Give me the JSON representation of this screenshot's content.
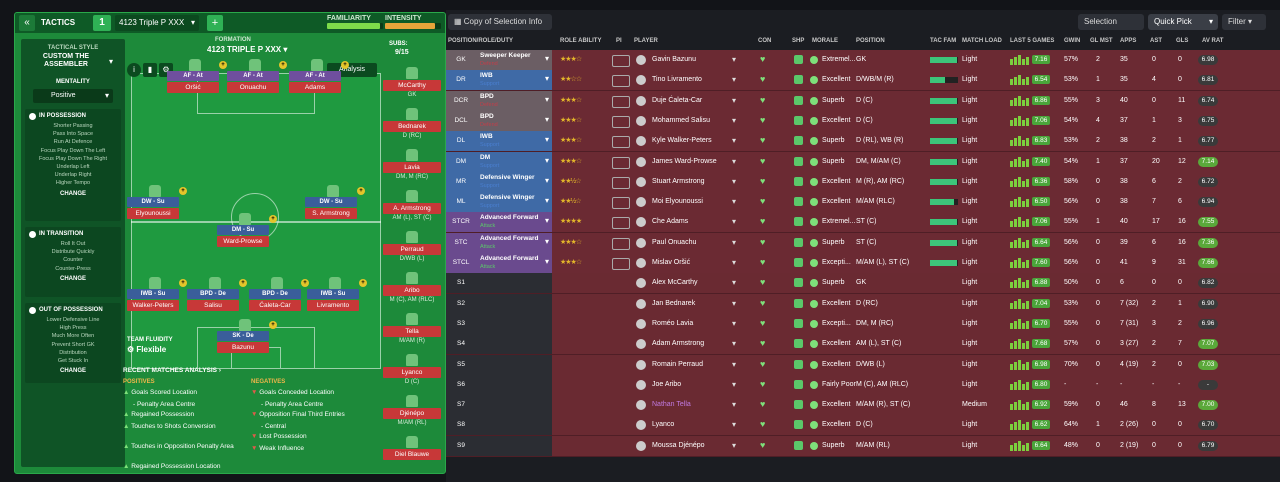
{
  "topbar": {
    "title": "TACTICS",
    "tactic_number": "1",
    "tactic_name": "4123 Triple P XXX",
    "familiarity_label": "FAMILIARITY",
    "intensity_label": "INTENSITY",
    "familiarity": 0.95,
    "intensity": 0.9
  },
  "sidebar": {
    "style_label": "TACTICAL STYLE",
    "style_name": "CUSTOM THE ASSEMBLER",
    "mentality_label": "MENTALITY",
    "mentality_value": "Positive",
    "in_possession": {
      "title": "IN POSSESSION",
      "items": [
        "Shorter Passing",
        "Pass Into Space",
        "Run At Defence",
        "Focus Play Down The Left",
        "Focus Play Down The Right",
        "Underlap Left",
        "Underlap Right",
        "Higher Tempo"
      ],
      "change": "CHANGE"
    },
    "in_transition": {
      "title": "IN TRANSITION",
      "items": [
        "Roll It Out",
        "Distribute Quickly",
        "Counter",
        "Counter-Press"
      ],
      "change": "CHANGE"
    },
    "out_possession": {
      "title": "OUT OF POSSESSION",
      "items": [
        "Lower Defensive Line",
        "High Press",
        "Much More Often",
        "Prevent Short GK",
        "Distribution",
        "Get Stuck In"
      ],
      "change": "CHANGE"
    }
  },
  "formation": {
    "label": "FORMATION",
    "name": "4123 TRIPLE P XXX",
    "subs_label": "SUBS:",
    "subs_value": "9/15",
    "analysis": "Analysis",
    "fluidity_label": "TEAM FLUIDITY",
    "fluidity_value": "Flexible"
  },
  "pitch_players": [
    {
      "role": "AF - At",
      "name": "Oršić",
      "attack": true
    },
    {
      "role": "AF - At",
      "name": "Onuachu",
      "attack": true
    },
    {
      "role": "AF - At",
      "name": "Adams",
      "attack": true
    },
    {
      "role": "DW - Su",
      "name": "Elyounoussi",
      "attack": false
    },
    {
      "role": "DW - Su",
      "name": "S. Armstrong",
      "attack": false
    },
    {
      "role": "DM - Su",
      "name": "Ward-Prowse",
      "attack": false
    },
    {
      "role": "IWB - Su",
      "name": "Walker-Peters",
      "attack": false
    },
    {
      "role": "BPD - De",
      "name": "Salisu",
      "attack": false
    },
    {
      "role": "BPD - De",
      "name": "Ćaleta-Car",
      "attack": false
    },
    {
      "role": "IWB - Su",
      "name": "Livramento",
      "attack": false
    },
    {
      "role": "SK - De",
      "name": "Bazunu",
      "attack": false
    }
  ],
  "subs": [
    {
      "name": "McCarthy",
      "pos": "GK"
    },
    {
      "name": "Bednarek",
      "pos": "D (RC)"
    },
    {
      "name": "Lavia",
      "pos": "DM, M (RC)"
    },
    {
      "name": "A. Armstrong",
      "pos": "AM (L), ST (C)"
    },
    {
      "name": "Perraud",
      "pos": "D/WB (L)"
    },
    {
      "name": "Aribo",
      "pos": "M (C), AM (RLC)"
    },
    {
      "name": "Tella",
      "pos": "M/AM (R)"
    },
    {
      "name": "Lyanco",
      "pos": "D (C)"
    },
    {
      "name": "Djénépo",
      "pos": "M/AM (RL)"
    },
    {
      "name": "Diel Blauwe",
      "pos": ""
    }
  ],
  "recent": {
    "title": "RECENT MATCHES ANALYSIS",
    "positives_label": "POSITIVES",
    "positives": [
      {
        "text": "Goals Scored Location",
        "sub": "- Penalty Area Centre"
      },
      {
        "text": "Regained Possession",
        "sub": ""
      },
      {
        "text": "Touches to Shots Conversion",
        "sub": ""
      },
      {
        "text": "Touches in Opposition Penalty Area",
        "sub": ""
      },
      {
        "text": "Regained Possession Location",
        "sub": ""
      }
    ],
    "negatives_label": "NEGATIVES",
    "negatives": [
      {
        "text": "Goals Conceded Location",
        "sub": "- Penalty Area Centre"
      },
      {
        "text": "Opposition Final Third Entries",
        "sub": "- Central"
      },
      {
        "text": "Lost Possession",
        "sub": ""
      },
      {
        "text": "Weak Influence",
        "sub": ""
      }
    ]
  },
  "toolbar": {
    "view_select": "Copy of Selection Info",
    "selection_advice": "Selection Advice",
    "quick_pick": "Quick Pick",
    "filter": "Filter"
  },
  "columns": [
    "POSITION/ROLE/DUTY",
    "ROLE ABILITY",
    "PI",
    "PLAYER",
    "CON",
    "SHP",
    "MORALE",
    "POSITION",
    "TAC FAM",
    "MATCH LOAD",
    "LAST 5 GAMES",
    "GWIN",
    "GL MST",
    "APPS",
    "AST",
    "GLS",
    "AV RAT"
  ],
  "rows": [
    {
      "pos": "GK",
      "role": "Sweeper Keeper",
      "duty": "Defend",
      "duty_type": "def",
      "stars": "★★★☆",
      "name": "Gavin Bazunu",
      "morale": "Extremel...",
      "position": "GK",
      "tac": 0.95,
      "load": "Light",
      "last": "7.16",
      "gwin": "57%",
      "glmst": "2",
      "apps": "35",
      "ast": "0",
      "gls": "0",
      "av": "6.98"
    },
    {
      "pos": "DR",
      "role": "IWB",
      "duty": "Support",
      "duty_type": "sup",
      "stars": "★★☆☆",
      "name": "Tino Livramento",
      "morale": "Excellent",
      "position": "D/WB/M (R)",
      "tac": 0.55,
      "load": "Light",
      "last": "6.54",
      "gwin": "53%",
      "glmst": "1",
      "apps": "35",
      "ast": "4",
      "gls": "0",
      "av": "6.81"
    },
    {
      "pos": "DCR",
      "role": "BPD",
      "duty": "Defend",
      "duty_type": "def",
      "stars": "★★★☆",
      "name": "Duje Ćaleta-Car",
      "morale": "Superb",
      "position": "D (C)",
      "tac": 0.95,
      "load": "Light",
      "last": "6.86",
      "gwin": "55%",
      "glmst": "3",
      "apps": "40",
      "ast": "0",
      "gls": "11",
      "av": "6.74"
    },
    {
      "pos": "DCL",
      "role": "BPD",
      "duty": "Defend",
      "duty_type": "def",
      "stars": "★★★☆",
      "name": "Mohammed Salisu",
      "morale": "Excellent",
      "position": "D (C)",
      "tac": 0.95,
      "load": "Light",
      "last": "7.06",
      "gwin": "54%",
      "glmst": "4",
      "apps": "37",
      "ast": "1",
      "gls": "3",
      "av": "6.75"
    },
    {
      "pos": "DL",
      "role": "IWB",
      "duty": "Support",
      "duty_type": "sup",
      "stars": "★★★☆",
      "name": "Kyle Walker-Peters",
      "morale": "Superb",
      "position": "D (RL), WB (R)",
      "tac": 0.95,
      "load": "Light",
      "last": "6.83",
      "gwin": "53%",
      "glmst": "2",
      "apps": "38",
      "ast": "2",
      "gls": "1",
      "av": "6.77"
    },
    {
      "pos": "DM",
      "role": "DM",
      "duty": "Support",
      "duty_type": "sup",
      "stars": "★★★☆",
      "name": "James Ward-Prowse",
      "morale": "Superb",
      "position": "DM, M/AM (C)",
      "tac": 0.95,
      "load": "Light",
      "last": "7.40",
      "gwin": "54%",
      "glmst": "1",
      "apps": "37",
      "ast": "20",
      "gls": "12",
      "av": "7.14"
    },
    {
      "pos": "MR",
      "role": "Defensive Winger",
      "duty": "Support",
      "duty_type": "sup",
      "stars": "★★½☆",
      "name": "Stuart Armstrong",
      "morale": "Excellent",
      "position": "M (R), AM (RC)",
      "tac": 0.95,
      "load": "Light",
      "last": "6.36",
      "gwin": "58%",
      "glmst": "0",
      "apps": "38",
      "ast": "6",
      "gls": "2",
      "av": "6.72"
    },
    {
      "pos": "ML",
      "role": "Defensive Winger",
      "duty": "Support",
      "duty_type": "sup",
      "stars": "★★½☆",
      "name": "Moi Elyounoussi",
      "morale": "Excellent",
      "position": "M/AM (RLC)",
      "tac": 0.85,
      "load": "Light",
      "last": "6.50",
      "gwin": "56%",
      "glmst": "0",
      "apps": "38",
      "ast": "7",
      "gls": "6",
      "av": "6.94"
    },
    {
      "pos": "STCR",
      "role": "Advanced Forward",
      "duty": "Attack",
      "duty_type": "atk",
      "stars": "★★★★",
      "name": "Che Adams",
      "morale": "Extremel...",
      "position": "ST (C)",
      "tac": 0.95,
      "load": "Light",
      "last": "7.06",
      "gwin": "55%",
      "glmst": "1",
      "apps": "40",
      "ast": "17",
      "gls": "16",
      "av": "7.55"
    },
    {
      "pos": "STC",
      "role": "Advanced Forward",
      "duty": "Attack",
      "duty_type": "atk",
      "stars": "★★★☆",
      "name": "Paul Onuachu",
      "morale": "Superb",
      "position": "ST (C)",
      "tac": 0.95,
      "load": "Light",
      "last": "6.64",
      "gwin": "56%",
      "glmst": "0",
      "apps": "39",
      "ast": "6",
      "gls": "16",
      "av": "7.36"
    },
    {
      "pos": "STCL",
      "role": "Advanced Forward",
      "duty": "Attack",
      "duty_type": "atk",
      "stars": "★★★☆",
      "name": "Mislav Oršić",
      "morale": "Excepti...",
      "position": "M/AM (L), ST (C)",
      "tac": 0.95,
      "load": "Light",
      "last": "7.60",
      "gwin": "56%",
      "glmst": "0",
      "apps": "41",
      "ast": "9",
      "gls": "31",
      "av": "7.66"
    },
    {
      "pos": "S1",
      "role": "",
      "duty": "",
      "duty_type": "",
      "stars": "",
      "name": "Alex McCarthy",
      "morale": "Superb",
      "position": "GK",
      "tac": 0,
      "load": "Light",
      "last": "6.88",
      "gwin": "50%",
      "glmst": "0",
      "apps": "6",
      "ast": "0",
      "gls": "0",
      "av": "6.82"
    },
    {
      "pos": "S2",
      "role": "",
      "duty": "",
      "duty_type": "",
      "stars": "",
      "name": "Jan Bednarek",
      "morale": "Excellent",
      "position": "D (RC)",
      "tac": 0,
      "load": "Light",
      "last": "7.04",
      "gwin": "53%",
      "glmst": "0",
      "apps": "7 (32)",
      "ast": "2",
      "gls": "1",
      "av": "6.90"
    },
    {
      "pos": "S3",
      "role": "",
      "duty": "",
      "duty_type": "",
      "stars": "",
      "name": "Roméo Lavia",
      "morale": "Excepti...",
      "position": "DM, M (RC)",
      "tac": 0,
      "load": "Light",
      "last": "6.70",
      "gwin": "55%",
      "glmst": "0",
      "apps": "7 (31)",
      "ast": "3",
      "gls": "2",
      "av": "6.96"
    },
    {
      "pos": "S4",
      "role": "",
      "duty": "",
      "duty_type": "",
      "stars": "",
      "name": "Adam Armstrong",
      "morale": "Excellent",
      "position": "AM (L), ST (C)",
      "tac": 0,
      "load": "Light",
      "last": "7.68",
      "gwin": "57%",
      "glmst": "0",
      "apps": "3 (27)",
      "ast": "2",
      "gls": "7",
      "av": "7.07"
    },
    {
      "pos": "S5",
      "role": "",
      "duty": "",
      "duty_type": "",
      "stars": "",
      "name": "Romain Perraud",
      "morale": "Excellent",
      "position": "D/WB (L)",
      "tac": 0,
      "load": "Light",
      "last": "6.98",
      "gwin": "70%",
      "glmst": "0",
      "apps": "4 (19)",
      "ast": "2",
      "gls": "0",
      "av": "7.03"
    },
    {
      "pos": "S6",
      "role": "",
      "duty": "",
      "duty_type": "",
      "stars": "",
      "name": "Joe Aribo",
      "morale": "Fairly Poor",
      "position": "M (C), AM (RLC)",
      "tac": 0,
      "load": "Light",
      "last": "6.80",
      "gwin": "-",
      "glmst": "-",
      "apps": "-",
      "ast": "-",
      "gls": "-",
      "av": "-"
    },
    {
      "pos": "S7",
      "role": "",
      "duty": "",
      "duty_type": "",
      "stars": "",
      "name": "Nathan Tella",
      "morale": "Excellent",
      "position": "M/AM (R), ST (C)",
      "tac": 0,
      "load": "Medium",
      "last": "6.92",
      "gwin": "59%",
      "glmst": "0",
      "apps": "46",
      "ast": "8",
      "gls": "13",
      "av": "7.00"
    },
    {
      "pos": "S8",
      "role": "",
      "duty": "",
      "duty_type": "",
      "stars": "",
      "name": "Lyanco",
      "morale": "Excellent",
      "position": "D (C)",
      "tac": 0,
      "load": "Light",
      "last": "6.62",
      "gwin": "64%",
      "glmst": "1",
      "apps": "2 (26)",
      "ast": "0",
      "gls": "0",
      "av": "6.70"
    },
    {
      "pos": "S9",
      "role": "",
      "duty": "",
      "duty_type": "",
      "stars": "",
      "name": "Moussa Djénépo",
      "morale": "Superb",
      "position": "M/AM (RL)",
      "tac": 0,
      "load": "Light",
      "last": "6.64",
      "gwin": "48%",
      "glmst": "0",
      "apps": "2 (19)",
      "ast": "0",
      "gls": "0",
      "av": "6.79"
    }
  ],
  "colors": {
    "panel_green": "#1d8a3a",
    "row_red": "#6b2a33",
    "defend": "#c03f4a",
    "support": "#4a7fd0",
    "attack": "#5bc86a",
    "rating_green": "#7ccf3e"
  }
}
